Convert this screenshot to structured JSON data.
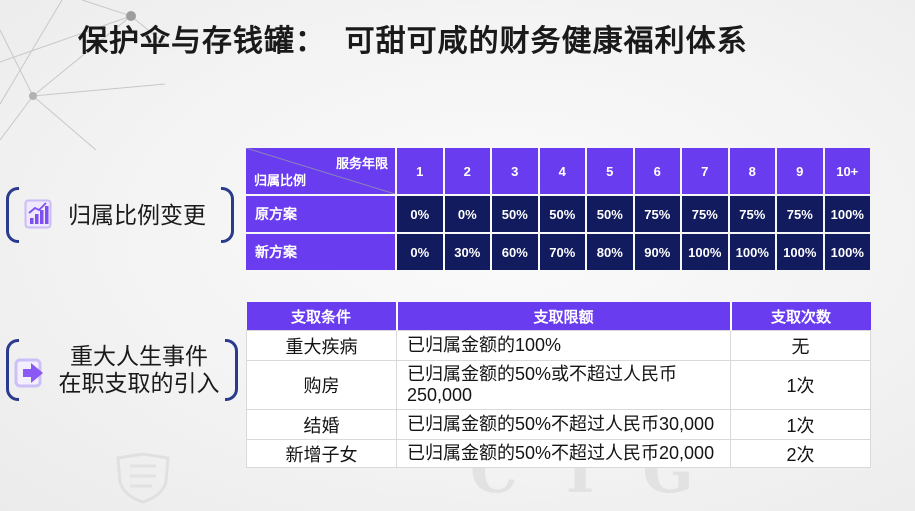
{
  "slide": {
    "title": "保护伞与存钱罐：  可甜可咸的财务健康福利体系",
    "watermark": "CTG"
  },
  "colors": {
    "header_purple": "#6a3cf0",
    "cell_navy": "#111b5e",
    "bracket_navy": "#2a3a8c",
    "icon_purple": "#7d4ff2",
    "text_dark": "#1a1a1a"
  },
  "sections": [
    {
      "icon": "bar-chart-icon",
      "lines": [
        "归属比例变更"
      ]
    },
    {
      "icon": "exit-arrow-icon",
      "lines": [
        "重大人生事件",
        "在职支取的引入"
      ]
    }
  ],
  "vesting_table": {
    "corner_top": "服务年限",
    "corner_bottom": "归属比例",
    "years": [
      "1",
      "2",
      "3",
      "4",
      "5",
      "6",
      "7",
      "8",
      "9",
      "10+"
    ],
    "rows": [
      {
        "label": "原方案",
        "values": [
          "0%",
          "0%",
          "50%",
          "50%",
          "50%",
          "75%",
          "75%",
          "75%",
          "75%",
          "100%"
        ]
      },
      {
        "label": "新方案",
        "values": [
          "0%",
          "30%",
          "60%",
          "70%",
          "80%",
          "90%",
          "100%",
          "100%",
          "100%",
          "100%"
        ]
      }
    ]
  },
  "withdrawal_table": {
    "headers": [
      "支取条件",
      "支取限额",
      "支取次数"
    ],
    "rows": [
      {
        "condition": "重大疾病",
        "limit": [
          "已归属金额的100%"
        ],
        "times": "无"
      },
      {
        "condition": "购房",
        "limit": [
          "已归属金额的50%或不超过人民币",
          "250,000"
        ],
        "times": "1次"
      },
      {
        "condition": "结婚",
        "limit": [
          "已归属金额的50%不超过人民币30,000"
        ],
        "times": "1次"
      },
      {
        "condition": "新增子女",
        "limit": [
          "已归属金额的50%不超过人民币20,000"
        ],
        "times": "2次"
      }
    ]
  }
}
